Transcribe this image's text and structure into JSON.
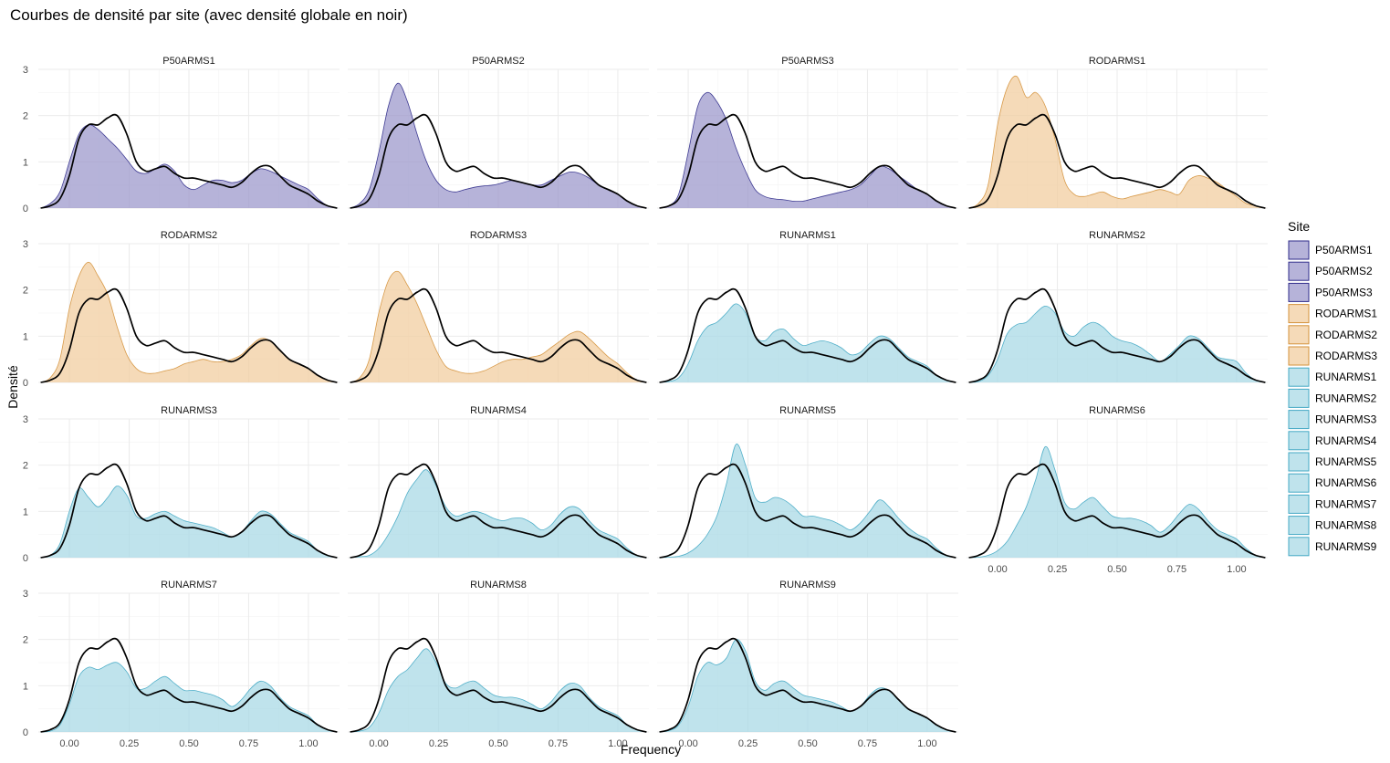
{
  "chart_data": {
    "type": "area",
    "title": "Courbes de densité par site (avec densité globale en noir)",
    "xlabel": "Frequency",
    "ylabel": "Densité",
    "xlim": [
      -0.13,
      1.13
    ],
    "ylim": [
      0,
      3
    ],
    "x_ticks": [
      "0.00",
      "0.25",
      "0.50",
      "0.75",
      "1.00"
    ],
    "x_tick_values": [
      0,
      0.25,
      0.5,
      0.75,
      1.0
    ],
    "y_ticks": [
      "0",
      "1",
      "2",
      "3"
    ],
    "y_tick_values": [
      0,
      1,
      2,
      3
    ],
    "grid": true,
    "legend_position": "right",
    "legend_title": "Site",
    "overall_series": {
      "color": "#000000",
      "x": [
        -0.12,
        -0.08,
        -0.04,
        0,
        0.04,
        0.08,
        0.12,
        0.16,
        0.2,
        0.24,
        0.28,
        0.32,
        0.36,
        0.4,
        0.44,
        0.48,
        0.52,
        0.56,
        0.6,
        0.64,
        0.68,
        0.72,
        0.76,
        0.8,
        0.84,
        0.88,
        0.92,
        0.96,
        1.0,
        1.04,
        1.08,
        1.12
      ],
      "y": [
        0,
        0.05,
        0.2,
        0.7,
        1.5,
        1.8,
        1.8,
        1.95,
        2.0,
        1.6,
        1.0,
        0.8,
        0.85,
        0.9,
        0.75,
        0.65,
        0.65,
        0.6,
        0.55,
        0.5,
        0.45,
        0.55,
        0.75,
        0.9,
        0.9,
        0.7,
        0.5,
        0.4,
        0.3,
        0.15,
        0.05,
        0
      ]
    },
    "series": [
      {
        "name": "P50ARMS1",
        "group": "P50",
        "y": [
          0,
          0.1,
          0.35,
          1.0,
          1.6,
          1.8,
          1.7,
          1.5,
          1.3,
          1.05,
          0.8,
          0.75,
          0.85,
          0.95,
          0.8,
          0.5,
          0.4,
          0.5,
          0.6,
          0.6,
          0.55,
          0.6,
          0.75,
          0.85,
          0.8,
          0.7,
          0.6,
          0.5,
          0.4,
          0.2,
          0.05,
          0
        ]
      },
      {
        "name": "P50ARMS2",
        "group": "P50",
        "y": [
          0,
          0.1,
          0.4,
          1.2,
          2.2,
          2.7,
          2.3,
          1.6,
          1.0,
          0.6,
          0.4,
          0.35,
          0.4,
          0.45,
          0.48,
          0.5,
          0.55,
          0.6,
          0.55,
          0.5,
          0.5,
          0.6,
          0.7,
          0.78,
          0.75,
          0.65,
          0.5,
          0.4,
          0.3,
          0.15,
          0.05,
          0
        ]
      },
      {
        "name": "P50ARMS3",
        "group": "P50",
        "y": [
          0,
          0.05,
          0.3,
          1.2,
          2.2,
          2.5,
          2.3,
          1.9,
          1.3,
          0.8,
          0.4,
          0.25,
          0.2,
          0.18,
          0.15,
          0.15,
          0.2,
          0.25,
          0.3,
          0.35,
          0.4,
          0.5,
          0.7,
          0.9,
          0.85,
          0.7,
          0.55,
          0.4,
          0.3,
          0.15,
          0.05,
          0
        ]
      },
      {
        "name": "RODARMS1",
        "group": "ROD",
        "y": [
          0,
          0.1,
          0.5,
          1.8,
          2.6,
          2.85,
          2.4,
          2.5,
          2.2,
          1.5,
          0.6,
          0.3,
          0.25,
          0.3,
          0.35,
          0.25,
          0.2,
          0.25,
          0.3,
          0.35,
          0.4,
          0.35,
          0.3,
          0.6,
          0.7,
          0.65,
          0.55,
          0.4,
          0.25,
          0.1,
          0.05,
          0
        ]
      },
      {
        "name": "RODARMS2",
        "group": "ROD",
        "y": [
          0,
          0.1,
          0.5,
          1.6,
          2.3,
          2.6,
          2.3,
          1.9,
          1.2,
          0.6,
          0.3,
          0.2,
          0.2,
          0.25,
          0.3,
          0.4,
          0.45,
          0.5,
          0.45,
          0.45,
          0.5,
          0.6,
          0.8,
          0.95,
          0.9,
          0.7,
          0.5,
          0.4,
          0.3,
          0.15,
          0.05,
          0
        ]
      },
      {
        "name": "RODARMS3",
        "group": "ROD",
        "y": [
          0,
          0.1,
          0.5,
          1.5,
          2.2,
          2.4,
          2.1,
          1.7,
          1.2,
          0.7,
          0.35,
          0.25,
          0.2,
          0.2,
          0.25,
          0.35,
          0.45,
          0.5,
          0.5,
          0.55,
          0.6,
          0.75,
          0.9,
          1.05,
          1.1,
          0.95,
          0.75,
          0.55,
          0.4,
          0.2,
          0.05,
          0
        ]
      },
      {
        "name": "RUNARMS1",
        "group": "RUN",
        "y": [
          0,
          0.02,
          0.1,
          0.4,
          0.9,
          1.2,
          1.3,
          1.5,
          1.7,
          1.5,
          1.0,
          0.9,
          1.1,
          1.15,
          0.95,
          0.8,
          0.85,
          0.9,
          0.85,
          0.75,
          0.6,
          0.65,
          0.85,
          1.0,
          0.95,
          0.75,
          0.55,
          0.45,
          0.35,
          0.15,
          0.05,
          0
        ]
      },
      {
        "name": "RUNARMS2",
        "group": "RUN",
        "y": [
          0,
          0.02,
          0.15,
          0.5,
          1.05,
          1.25,
          1.3,
          1.5,
          1.65,
          1.5,
          1.1,
          1.0,
          1.2,
          1.3,
          1.2,
          1.0,
          0.9,
          0.85,
          0.75,
          0.6,
          0.45,
          0.6,
          0.8,
          1.0,
          0.95,
          0.75,
          0.55,
          0.5,
          0.45,
          0.2,
          0.05,
          0
        ]
      },
      {
        "name": "RUNARMS3",
        "group": "RUN",
        "y": [
          0,
          0.05,
          0.3,
          1.0,
          1.5,
          1.3,
          1.1,
          1.3,
          1.55,
          1.35,
          0.9,
          0.85,
          0.95,
          1.0,
          0.9,
          0.8,
          0.75,
          0.7,
          0.65,
          0.55,
          0.45,
          0.55,
          0.8,
          1.0,
          0.95,
          0.75,
          0.55,
          0.45,
          0.35,
          0.15,
          0.05,
          0
        ]
      },
      {
        "name": "RUNARMS4",
        "group": "RUN",
        "y": [
          0,
          0.02,
          0.05,
          0.2,
          0.5,
          0.9,
          1.4,
          1.7,
          1.9,
          1.55,
          1.1,
          0.9,
          0.95,
          1.0,
          0.95,
          0.85,
          0.8,
          0.85,
          0.85,
          0.75,
          0.6,
          0.7,
          0.95,
          1.1,
          1.05,
          0.8,
          0.6,
          0.5,
          0.4,
          0.2,
          0.05,
          0
        ]
      },
      {
        "name": "RUNARMS5",
        "group": "RUN",
        "y": [
          0,
          0.01,
          0.03,
          0.1,
          0.25,
          0.5,
          0.9,
          1.6,
          2.45,
          2.0,
          1.3,
          1.2,
          1.3,
          1.25,
          1.1,
          0.9,
          0.9,
          0.85,
          0.8,
          0.7,
          0.6,
          0.75,
          1.0,
          1.25,
          1.1,
          0.85,
          0.65,
          0.5,
          0.4,
          0.2,
          0.05,
          0
        ]
      },
      {
        "name": "RUNARMS6",
        "group": "RUN",
        "y": [
          0,
          0.01,
          0.05,
          0.15,
          0.35,
          0.7,
          1.1,
          1.7,
          2.4,
          1.9,
          1.2,
          1.05,
          1.2,
          1.3,
          1.1,
          0.9,
          0.85,
          0.85,
          0.8,
          0.7,
          0.55,
          0.7,
          0.95,
          1.15,
          1.05,
          0.8,
          0.6,
          0.5,
          0.4,
          0.2,
          0.05,
          0
        ]
      },
      {
        "name": "RUNARMS7",
        "group": "RUN",
        "y": [
          0,
          0.02,
          0.15,
          0.6,
          1.2,
          1.4,
          1.35,
          1.45,
          1.5,
          1.3,
          0.95,
          0.95,
          1.1,
          1.2,
          1.05,
          0.9,
          0.9,
          0.85,
          0.8,
          0.7,
          0.55,
          0.7,
          0.95,
          1.1,
          1.0,
          0.75,
          0.55,
          0.45,
          0.35,
          0.15,
          0.05,
          0
        ]
      },
      {
        "name": "RUNARMS8",
        "group": "RUN",
        "y": [
          0,
          0.02,
          0.1,
          0.4,
          0.9,
          1.2,
          1.35,
          1.6,
          1.8,
          1.5,
          1.05,
          0.95,
          1.05,
          1.1,
          0.95,
          0.8,
          0.75,
          0.75,
          0.7,
          0.6,
          0.5,
          0.65,
          0.9,
          1.05,
          1.0,
          0.75,
          0.55,
          0.45,
          0.35,
          0.15,
          0.05,
          0
        ]
      },
      {
        "name": "RUNARMS9",
        "group": "RUN",
        "y": [
          0,
          0.03,
          0.15,
          0.55,
          1.2,
          1.5,
          1.45,
          1.6,
          2.0,
          1.75,
          1.1,
          0.9,
          1.05,
          1.1,
          0.95,
          0.8,
          0.75,
          0.7,
          0.65,
          0.55,
          0.45,
          0.55,
          0.8,
          0.95,
          0.9,
          0.7,
          0.5,
          0.4,
          0.3,
          0.15,
          0.05,
          0
        ]
      }
    ],
    "group_colors": {
      "P50": {
        "fill": "#9e9acc",
        "stroke": "#2f2b8a"
      },
      "ROD": {
        "fill": "#f1cea0",
        "stroke": "#d4913a"
      },
      "RUN": {
        "fill": "#a9d9e6",
        "stroke": "#43a8c4"
      }
    }
  }
}
